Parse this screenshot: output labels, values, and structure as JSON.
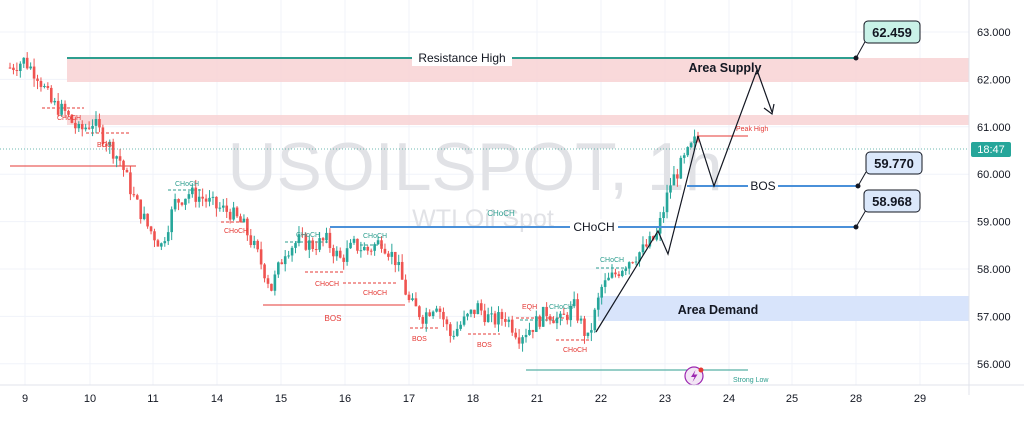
{
  "watermark": {
    "symbol": "USOILSPOT, 1h",
    "name": "WTI Oil Spot"
  },
  "colors": {
    "up": "#26a69a",
    "down": "#ef5350",
    "level": "#4a90d9",
    "resistance": "#2e9e8f",
    "supply": "#f8d2d4",
    "demand": "#d8e4fb",
    "red_line": "#e53935",
    "teal_line": "#2e9e8f",
    "grid": "#f0f3fa"
  },
  "price_axis": {
    "ticks": [
      "63.000",
      "62.000",
      "61.000",
      "60.000",
      "59.000",
      "58.000",
      "57.000",
      "56.000"
    ],
    "countdown": "18:47"
  },
  "time_axis": {
    "ticks": [
      "9",
      "10",
      "11",
      "14",
      "15",
      "16",
      "17",
      "18",
      "21",
      "22",
      "23",
      "24",
      "25",
      "28",
      "29"
    ]
  },
  "levels": {
    "resistance_high": {
      "label": "Resistance High",
      "value": "62.459"
    },
    "bos": {
      "label": "BOS",
      "value": "59.770"
    },
    "choch": {
      "label": "CHoCH",
      "value": "58.968"
    }
  },
  "zones": {
    "supply": "Area Supply",
    "demand": "Area Demand"
  },
  "annotations": {
    "peak_high": "Peak High",
    "strong_low": "Strong Low",
    "eqh": "EQH",
    "choch_small": "CHoCH",
    "bos_small": "BOS",
    "choch_mid": "CHoCH"
  },
  "chart_data": {
    "type": "candlestick",
    "symbol": "USOILSPOT",
    "timeframe": "1h",
    "ylim": [
      55.7,
      63.4
    ],
    "x_tick_labels": [
      "9",
      "10",
      "11",
      "14",
      "15",
      "16",
      "17",
      "18",
      "21",
      "22",
      "23",
      "24",
      "25",
      "28",
      "29"
    ],
    "close_path": [
      62.25,
      62.4,
      62.1,
      61.5,
      61.3,
      60.9,
      61.1,
      60.7,
      60.3,
      59.5,
      58.9,
      58.5,
      59.4,
      59.6,
      59.5,
      59.3,
      59.2,
      58.9,
      58.3,
      57.6,
      58.4,
      58.6,
      58.5,
      58.6,
      58.2,
      58.5,
      58.4,
      58.6,
      58.2,
      57.3,
      57.0,
      57.3,
      56.6,
      56.9,
      57.2,
      56.9,
      57.0,
      56.6,
      56.8,
      57.1,
      56.9,
      57.2,
      56.5,
      57.6,
      57.9,
      58.2,
      58.4,
      58.7,
      59.8,
      60.3,
      60.8
    ],
    "levels": [
      {
        "name": "Resistance High",
        "value": 62.459
      },
      {
        "name": "BOS",
        "value": 59.77
      },
      {
        "name": "CHoCH",
        "value": 58.968
      }
    ],
    "zones": [
      {
        "name": "Area Supply",
        "from": 61.9,
        "to": 62.45
      },
      {
        "name": "Area Supply (upper edge)",
        "from": 61.05,
        "to": 61.25
      },
      {
        "name": "Area Demand",
        "from": 57.0,
        "to": 57.55
      }
    ],
    "projection": [
      60.8,
      59.8,
      62.1,
      61.3
    ],
    "last_price": 60.5
  }
}
